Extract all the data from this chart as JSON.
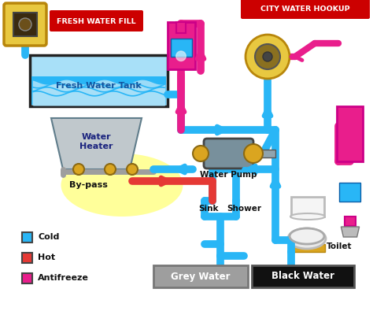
{
  "bg_color": "#ffffff",
  "cold_color": "#29b6f6",
  "hot_color": "#e53935",
  "antifreeze_color": "#e91e8c",
  "fresh_water_fill_label": "FRESH WATER FILL",
  "city_water_hookup_label": "CITY WATER HOOKUP",
  "fresh_water_tank_label": "Fresh Water Tank",
  "water_heater_label": "Water\nHeater",
  "bypass_label": "By-pass",
  "water_pump_label": "Water Pump",
  "sink_label": "Sink",
  "shower_label": "Shower",
  "toilet_label": "Toilet",
  "grey_water_label": "Grey Water",
  "black_water_label": "Black Water",
  "legend_cold": "Cold",
  "legend_hot": "Hot",
  "legend_antifreeze": "Antifreeze"
}
